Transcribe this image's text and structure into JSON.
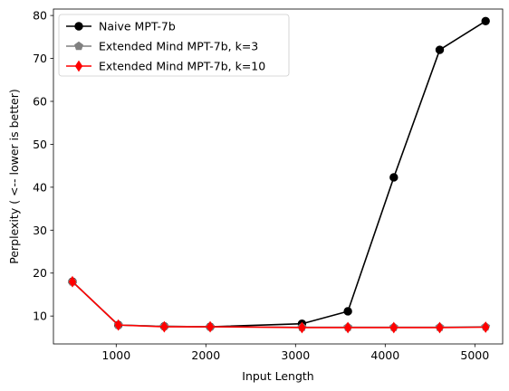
{
  "chart_data": {
    "type": "line",
    "xlabel": "Input Length",
    "ylabel": "Perplexity ( <-- lower is better)",
    "xlim": [
      300,
      5310
    ],
    "ylim": [
      3.5,
      81.5
    ],
    "xticks": [
      1000,
      2000,
      3000,
      4000,
      5000
    ],
    "yticks": [
      10,
      20,
      30,
      40,
      50,
      60,
      70,
      80
    ],
    "grid": false,
    "legend_position": "top-left",
    "series": [
      {
        "name": "Naive MPT-7b",
        "color": "#000000",
        "marker": "circle",
        "x": [
          512,
          1024,
          1536,
          2048,
          3072,
          3584,
          4096,
          4608,
          5120
        ],
        "y": [
          18.0,
          7.9,
          7.6,
          7.5,
          8.2,
          11.1,
          42.3,
          72.0,
          78.7
        ]
      },
      {
        "name": "Extended Mind MPT-7b, k=3",
        "color": "#808080",
        "marker": "pentagon",
        "x": [
          512,
          1024,
          1536,
          2048,
          3072,
          3584,
          4096,
          4608,
          5120
        ],
        "y": [
          18.0,
          7.9,
          7.6,
          7.5,
          7.4,
          7.4,
          7.4,
          7.4,
          7.5
        ]
      },
      {
        "name": "Extended Mind MPT-7b, k=10",
        "color": "#ff0000",
        "marker": "diamond",
        "x": [
          512,
          1024,
          1536,
          2048,
          3072,
          3584,
          4096,
          4608,
          5120
        ],
        "y": [
          18.0,
          7.9,
          7.5,
          7.5,
          7.3,
          7.3,
          7.3,
          7.3,
          7.4
        ]
      }
    ]
  }
}
